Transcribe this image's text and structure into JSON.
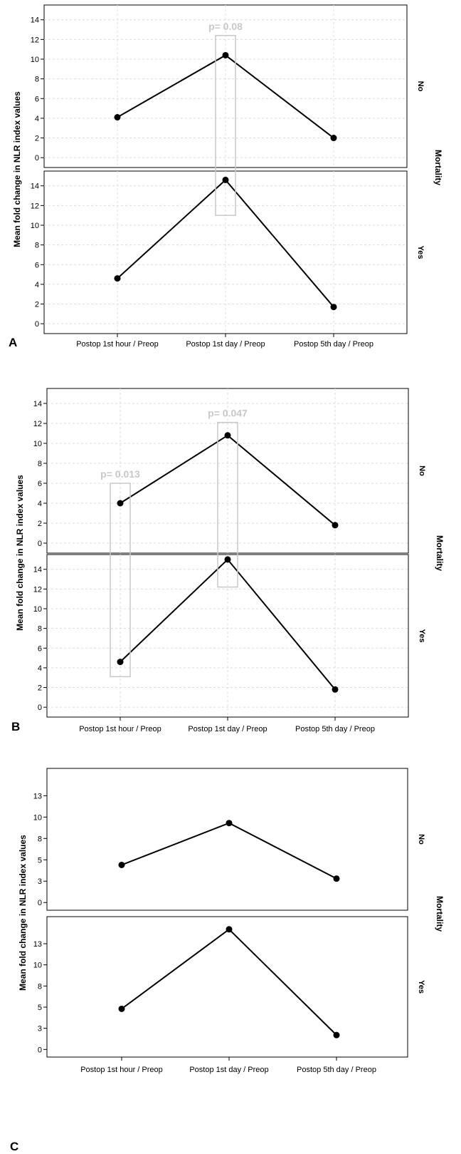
{
  "chart_data": [
    {
      "type": "line",
      "panel_label": "A",
      "ylabel": "Mean fold change in NLR index values",
      "facet_label": "Mortality",
      "categories": [
        "Postop 1st hour / Preop",
        "Postop 1st day / Preop",
        "Postop 5th day / Preop"
      ],
      "ylim": [
        -1,
        15.5
      ],
      "yticks": [
        0,
        2,
        4,
        6,
        8,
        10,
        12,
        14
      ],
      "grid": true,
      "rows": [
        {
          "label": "No",
          "values": [
            4.1,
            10.4,
            2.0
          ]
        },
        {
          "label": "Yes",
          "values": [
            4.6,
            14.6,
            1.7
          ]
        }
      ],
      "annotations": [
        {
          "text": "p= 0.08",
          "category_index": 1,
          "from_row": 0,
          "to_row": 1,
          "y_top": 12.4,
          "y_bottom": 11.0
        }
      ]
    },
    {
      "type": "line",
      "panel_label": "B",
      "ylabel": "Mean fold change in NLR index values",
      "facet_label": "Mortality",
      "categories": [
        "Postop 1st hour / Preop",
        "Postop 1st day / Preop",
        "Postop 5th day / Preop"
      ],
      "ylim": [
        -1,
        15.5
      ],
      "yticks": [
        0,
        2,
        4,
        6,
        8,
        10,
        12,
        14
      ],
      "grid": true,
      "rows": [
        {
          "label": "No",
          "values": [
            4.0,
            10.8,
            1.8
          ]
        },
        {
          "label": "Yes",
          "values": [
            4.6,
            15.0,
            1.8
          ]
        }
      ],
      "annotations": [
        {
          "text": "p= 0.013",
          "category_index": 0,
          "from_row": 0,
          "to_row": 1,
          "y_top": 6.0,
          "y_bottom": 3.1
        },
        {
          "text": "p= 0.047",
          "category_index": 1,
          "from_row": 0,
          "to_row": 1,
          "y_top": 12.1,
          "y_bottom": 12.2
        }
      ]
    },
    {
      "type": "line",
      "panel_label": "C",
      "ylabel": "Mean fold change in NLR index values",
      "facet_label": "Mortality",
      "categories": [
        "Postop 1st hour / Preop",
        "Postop 1st day / Preop",
        "Postop 5th day / Preop"
      ],
      "ylim": [
        -0.9,
        15.7
      ],
      "yticks": [
        0,
        2.5,
        5,
        7.5,
        10,
        12.5
      ],
      "ytick_labels": [
        "0",
        "3",
        "5",
        "8",
        "10",
        "13"
      ],
      "grid": false,
      "rows": [
        {
          "label": "No",
          "values": [
            4.4,
            9.3,
            2.8
          ]
        },
        {
          "label": "Yes",
          "values": [
            4.8,
            14.2,
            1.7
          ]
        }
      ],
      "annotations": []
    }
  ]
}
